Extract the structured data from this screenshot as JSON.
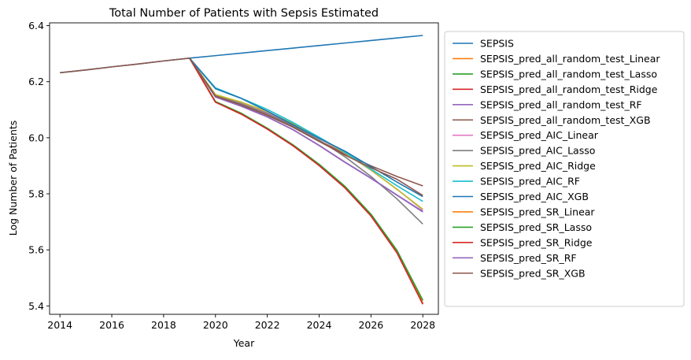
{
  "chart_data": {
    "type": "line",
    "title": "Total Number of Patients with Sepsis Estimated",
    "xlabel": "Year",
    "ylabel": "Log Number of Patients",
    "xlim": [
      2013.6,
      2028.6
    ],
    "ylim": [
      5.37,
      6.41
    ],
    "xticks": [
      2014,
      2016,
      2018,
      2020,
      2022,
      2024,
      2026,
      2028
    ],
    "yticks": [
      5.4,
      5.6,
      5.8,
      6.0,
      6.2,
      6.4
    ],
    "xtick_labels": [
      "2014",
      "2016",
      "2018",
      "2020",
      "2022",
      "2024",
      "2026",
      "2028"
    ],
    "ytick_labels": [
      "5.4",
      "5.6",
      "5.8",
      "6.0",
      "6.2",
      "6.4"
    ],
    "grid": false,
    "legend_position": "outside right",
    "history": {
      "x": [
        2014,
        2015,
        2016,
        2017,
        2018,
        2019
      ],
      "y": [
        6.232,
        6.242,
        6.253,
        6.263,
        6.274,
        6.284
      ]
    },
    "forecast_x": [
      2019,
      2020,
      2021,
      2022,
      2023,
      2024,
      2025,
      2026,
      2027,
      2028
    ],
    "series": [
      {
        "name": "SEPSIS",
        "color": "#1f77b4",
        "full": true,
        "x": [
          2014,
          2015,
          2016,
          2017,
          2018,
          2019,
          2020,
          2021,
          2022,
          2023,
          2024,
          2025,
          2026,
          2027,
          2028
        ],
        "y": [
          6.232,
          6.242,
          6.253,
          6.263,
          6.274,
          6.284,
          6.293,
          6.302,
          6.311,
          6.32,
          6.329,
          6.338,
          6.347,
          6.356,
          6.365
        ]
      },
      {
        "name": "SEPSIS_pred_all_random_test_Linear",
        "color": "#ff7f0e",
        "y": [
          6.284,
          6.128,
          6.085,
          6.032,
          5.972,
          5.902,
          5.822,
          5.722,
          5.592,
          5.41
        ]
      },
      {
        "name": "SEPSIS_pred_all_random_test_Lasso",
        "color": "#2ca02c",
        "y": [
          6.284,
          6.129,
          6.087,
          6.034,
          5.974,
          5.905,
          5.826,
          5.727,
          5.598,
          5.42
        ]
      },
      {
        "name": "SEPSIS_pred_all_random_test_Ridge",
        "color": "#d62728",
        "y": [
          6.284,
          6.127,
          6.084,
          6.031,
          5.971,
          5.901,
          5.821,
          5.721,
          5.59,
          5.406
        ]
      },
      {
        "name": "SEPSIS_pred_all_random_test_RF",
        "color": "#9467bd",
        "y": [
          6.284,
          6.145,
          6.112,
          6.074,
          6.028,
          5.972,
          5.912,
          5.855,
          5.795,
          5.735
        ]
      },
      {
        "name": "SEPSIS_pred_all_random_test_XGB",
        "color": "#8c564b",
        "y": [
          6.284,
          6.147,
          6.117,
          6.081,
          6.04,
          5.99,
          5.942,
          5.9,
          5.862,
          5.828
        ]
      },
      {
        "name": "SEPSIS_pred_AIC_Linear",
        "color": "#e377c2",
        "y": [
          6.284,
          6.152,
          6.124,
          6.09,
          6.048,
          5.998,
          5.945,
          5.884,
          5.817,
          5.742
        ]
      },
      {
        "name": "SEPSIS_pred_AIC_Lasso",
        "color": "#7f7f7f",
        "y": [
          6.284,
          6.15,
          6.121,
          6.086,
          6.043,
          5.992,
          5.932,
          5.862,
          5.782,
          5.692
        ]
      },
      {
        "name": "SEPSIS_pred_AIC_Ridge",
        "color": "#bcbd22",
        "y": [
          6.284,
          6.154,
          6.127,
          6.093,
          6.05,
          6.0,
          5.946,
          5.885,
          5.816,
          5.745
        ]
      },
      {
        "name": "SEPSIS_pred_AIC_RF",
        "color": "#17becf",
        "y": [
          6.284,
          6.178,
          6.141,
          6.101,
          6.054,
          6.002,
          5.948,
          5.888,
          5.829,
          5.773
        ]
      },
      {
        "name": "SEPSIS_pred_AIC_XGB",
        "color": "#1f77b4",
        "y": [
          6.284,
          6.175,
          6.14,
          6.095,
          6.046,
          5.998,
          5.952,
          5.897,
          5.842,
          5.79
        ]
      },
      {
        "name": "SEPSIS_pred_SR_Linear",
        "color": "#ff7f0e",
        "y": [
          6.284,
          6.128,
          6.085,
          6.032,
          5.972,
          5.902,
          5.822,
          5.722,
          5.592,
          5.41
        ]
      },
      {
        "name": "SEPSIS_pred_SR_Lasso",
        "color": "#2ca02c",
        "y": [
          6.284,
          6.129,
          6.087,
          6.034,
          5.974,
          5.905,
          5.826,
          5.727,
          5.598,
          5.42
        ]
      },
      {
        "name": "SEPSIS_pred_SR_Ridge",
        "color": "#d62728",
        "y": [
          6.284,
          6.127,
          6.084,
          6.031,
          5.971,
          5.901,
          5.821,
          5.721,
          5.59,
          5.406
        ]
      },
      {
        "name": "SEPSIS_pred_SR_RF",
        "color": "#9467bd",
        "y": [
          6.284,
          6.146,
          6.113,
          6.075,
          6.029,
          5.973,
          5.913,
          5.856,
          5.796,
          5.737
        ]
      },
      {
        "name": "SEPSIS_pred_SR_XGB",
        "color": "#8c564b",
        "y": [
          6.284,
          6.149,
          6.117,
          6.08,
          6.037,
          5.987,
          5.938,
          5.893,
          5.852,
          5.794
        ]
      }
    ]
  }
}
